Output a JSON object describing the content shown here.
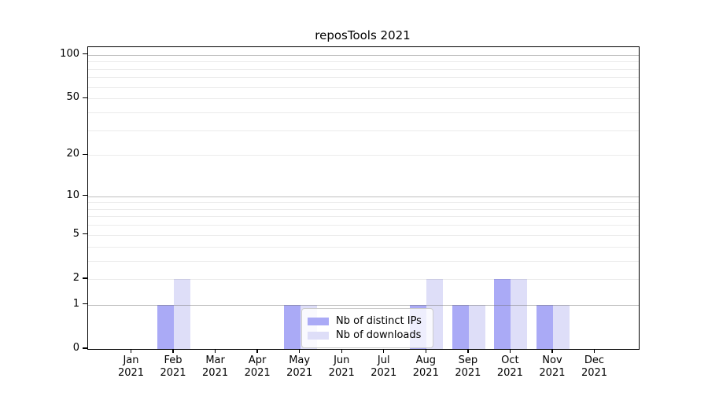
{
  "chart_data": {
    "type": "bar",
    "title": "reposTools 2021",
    "categories": [
      "Jan",
      "Feb",
      "Mar",
      "Apr",
      "May",
      "Jun",
      "Jul",
      "Aug",
      "Sep",
      "Oct",
      "Nov",
      "Dec"
    ],
    "x_tick_year": "2021",
    "series": [
      {
        "name": "Nb of distinct IPs",
        "color": "#aaaaf6",
        "values": [
          0,
          1,
          0,
          0,
          1,
          0,
          0,
          1,
          1,
          2,
          1,
          0
        ]
      },
      {
        "name": "Nb of downloads",
        "color": "#dedef8",
        "values": [
          0,
          2,
          0,
          0,
          1,
          0,
          0,
          2,
          1,
          2,
          1,
          0
        ]
      }
    ],
    "y_axis": {
      "scale": "symlog",
      "ticks": [
        0,
        1,
        2,
        5,
        10,
        20,
        50,
        100
      ],
      "major_gridlines": [
        1,
        10,
        100
      ],
      "minor_gridlines": [
        2,
        3,
        4,
        5,
        6,
        7,
        8,
        9,
        20,
        30,
        40,
        50,
        60,
        70,
        80,
        90
      ],
      "ylim": [
        0,
        113
      ]
    },
    "legend": {
      "position": "lower center"
    },
    "grid": true,
    "colors": {
      "major_grid": "#b9b9b9",
      "minor_grid": "#ebebeb",
      "axis": "#000000",
      "background": "#ffffff"
    }
  }
}
